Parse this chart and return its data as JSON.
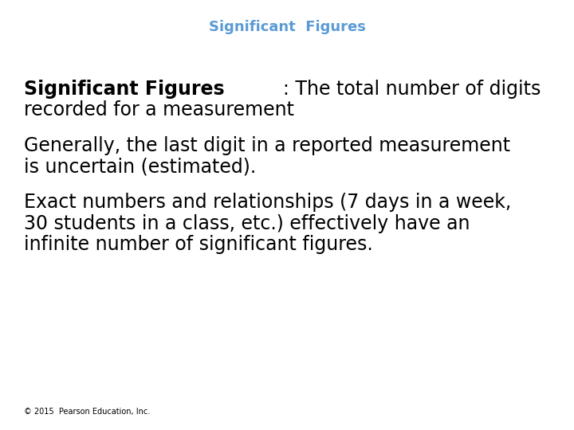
{
  "title": "Significant  Figures",
  "title_color": "#5b9bd5",
  "title_fontsize": 13,
  "background_color": "#ffffff",
  "paragraph1_bold": "Significant Figures",
  "paragraph1_line1_rest": ": The total number of digits",
  "paragraph1_line2": "recorded for a measurement",
  "paragraph1_fontsize": 17,
  "paragraph2_line1": "Generally, the last digit in a reported measurement",
  "paragraph2_line2": "is uncertain (estimated).",
  "paragraph2_fontsize": 17,
  "paragraph3_line1": "Exact numbers and relationships (7 days in a week,",
  "paragraph3_line2": "30 students in a class, etc.) effectively have an",
  "paragraph3_line3": "infinite number of significant figures.",
  "paragraph3_fontsize": 17,
  "footer": "© 2015  Pearson Education, Inc.",
  "footer_fontsize": 7,
  "text_color": "#000000",
  "font_family": "DejaVu Sans"
}
